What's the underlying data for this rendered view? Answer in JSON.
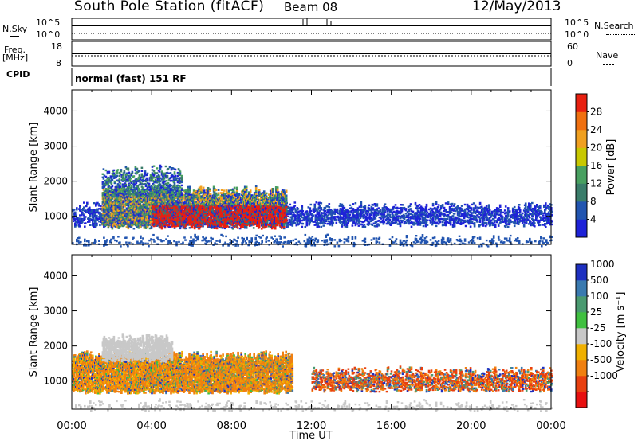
{
  "header": {
    "title": "South Pole Station (fitACF)",
    "beam": "Beam 08",
    "date": "12/May/2013"
  },
  "strip_labels": {
    "nsky": "N.Sky",
    "nsky_top": "10^5",
    "nsky_bottom": "10^0",
    "nsearch": "N.Search",
    "nsearch_top": "10^5",
    "nsearch_bottom": "10^0",
    "freq_line1": "Freq.",
    "freq_line2": "[MHz]",
    "freq_top": "18",
    "freq_bottom": "8",
    "nave": "Nave",
    "nave_top": "60",
    "nave_bottom": "0",
    "cpid": "CPID",
    "cpid_value": "normal (fast) 151 RF"
  },
  "chart_data": [
    {
      "type": "heatmap",
      "title": "",
      "ylabel": "Slant Range [km]",
      "xlabel": "",
      "ylim": [
        200,
        4600
      ],
      "y_ticks": [
        "1000",
        "2000",
        "3000",
        "4000"
      ],
      "colorbar": {
        "label": "Power [dB]",
        "ticks": [
          "4",
          "8",
          "12",
          "16",
          "20",
          "24",
          "28"
        ],
        "range": [
          0,
          32
        ]
      },
      "features": [
        {
          "name": "echo band",
          "t_start_h": 0.0,
          "t_end_h": 24.0,
          "range_km": [
            700,
            1300
          ]
        },
        {
          "name": "high power",
          "t_start_h": 1.5,
          "t_end_h": 10.5,
          "range_km": [
            700,
            1500
          ],
          "power_db": 28
        }
      ]
    },
    {
      "type": "heatmap",
      "title": "",
      "ylabel": "Slant Range [km]",
      "xlabel": "Time UT",
      "ylim": [
        200,
        4600
      ],
      "y_ticks": [
        "1000",
        "2000",
        "3000",
        "4000"
      ],
      "x_ticks": [
        "00:00",
        "04:00",
        "08:00",
        "12:00",
        "16:00",
        "20:00",
        "00:00"
      ],
      "colorbar": {
        "label": "Velocity [m s⁻¹]",
        "ticks": [
          "1000",
          "500",
          "100",
          "25",
          "-25",
          "-100",
          "-500",
          "-1000"
        ]
      },
      "features": [
        {
          "name": "westward flow",
          "t_start_h": 0.0,
          "t_end_h": 11.0,
          "range_km": [
            700,
            1700
          ],
          "velocity_ms": -300
        },
        {
          "name": "ground scatter",
          "t_start_h": 1.5,
          "t_end_h": 5.0,
          "range_km": [
            1600,
            2200
          ],
          "velocity_ms": 0
        }
      ]
    }
  ],
  "colors": {
    "power_scale": [
      "#1e22d8",
      "#2255b0",
      "#3a7d6a",
      "#48a060",
      "#c8c800",
      "#f0a020",
      "#f07010",
      "#e82010"
    ],
    "velocity_scale": [
      "#1e30c0",
      "#3a7ab0",
      "#4a9a70",
      "#40c040",
      "#c8c8c8",
      "#f0b000",
      "#f08010",
      "#e84010",
      "#e81010"
    ]
  }
}
